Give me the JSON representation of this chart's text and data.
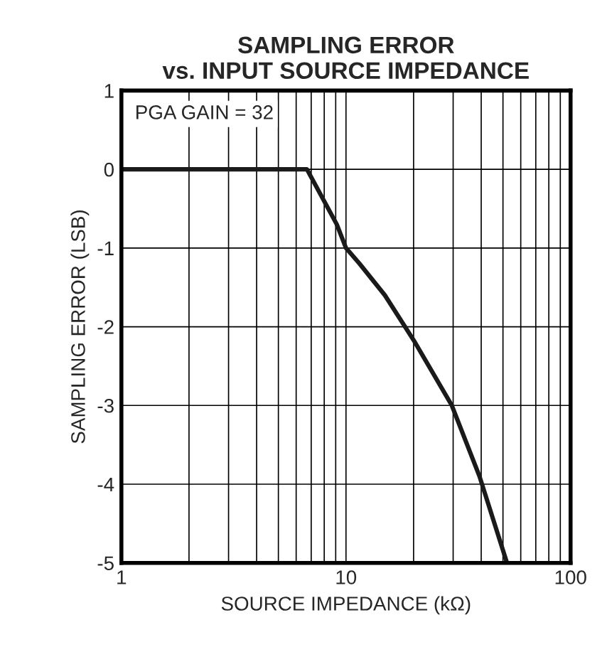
{
  "chart_data": {
    "type": "line",
    "title": "SAMPLING ERROR\nvs. INPUT SOURCE IMPEDANCE",
    "xlabel": "SOURCE IMPEDANCE (kΩ)",
    "ylabel": "SAMPLING ERROR (LSB)",
    "annotations": [
      "PGA GAIN = 32"
    ],
    "log": "x",
    "grid": true,
    "marker": "none",
    "line_style": "solid",
    "xlim": [
      1,
      100
    ],
    "xticks": [
      1,
      10,
      100
    ],
    "ylim": [
      -5,
      1
    ],
    "yticks": [
      -5,
      -4,
      -3,
      -2,
      -1,
      0,
      1
    ],
    "series": [
      {
        "color": "#1a1a1a",
        "x": [
          1,
          6.7,
          9.1,
          10,
          11.5,
          14.9,
          20.3,
          29.6,
          39.3,
          52.1
        ],
        "values": [
          0,
          0,
          -0.7,
          -1.0,
          -1.2,
          -1.6,
          -2.2,
          -3.0,
          -3.9,
          -5.0
        ]
      }
    ]
  }
}
